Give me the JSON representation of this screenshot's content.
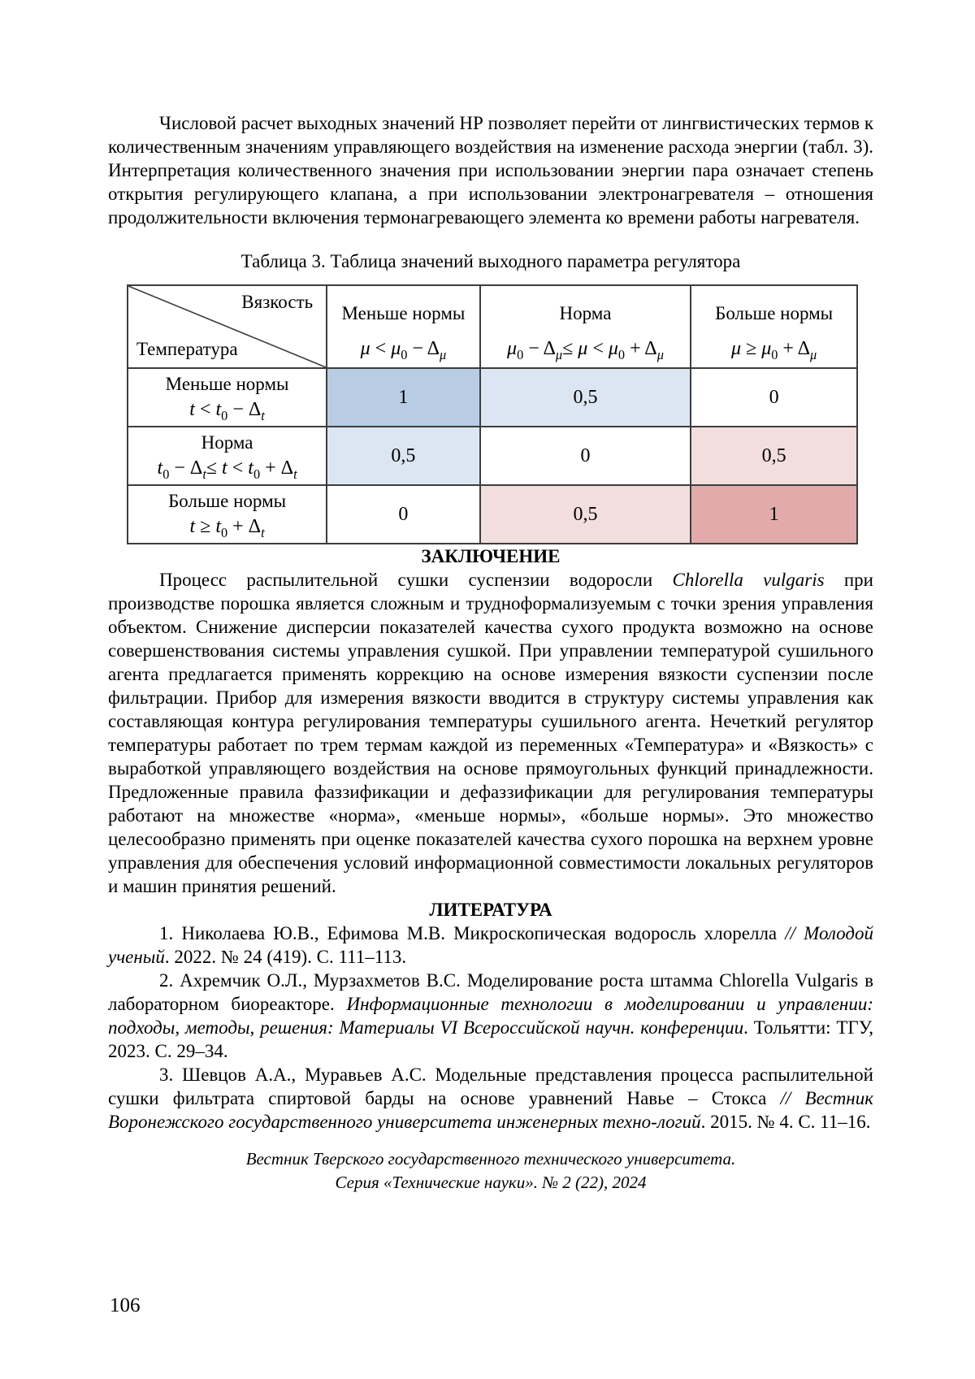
{
  "intro_paragraph": "Числовой расчет выходных значений НР позволяет перейти от лингвистических термов к количественным значениям управляющего воздействия на изменение расхода энергии (табл. 3). Интерпретация количественного значения при использовании энергии пара означает степень открытия регулирующего клапана, а при использовании электронагревателя – отношения продолжительности включения термонагревающего элемента ко времени работы нагревателя.",
  "table": {
    "caption": "Таблица 3. Таблица значений выходного параметра регулятора",
    "corner": {
      "top": "Вязкость",
      "bottom": "Температура"
    },
    "border_color": "#3d3d3d",
    "columns": [
      {
        "label": "Меньше нормы",
        "formula": [
          {
            "t": "μ",
            "i": true
          },
          {
            "t": " < "
          },
          {
            "t": "μ",
            "i": true
          },
          {
            "t": "0",
            "sub": true
          },
          {
            "t": " − Δ"
          },
          {
            "t": "μ",
            "sub": true,
            "i": true
          }
        ]
      },
      {
        "label": "Норма",
        "formula": [
          {
            "t": "μ",
            "i": true
          },
          {
            "t": "0",
            "sub": true
          },
          {
            "t": " − Δ"
          },
          {
            "t": "μ",
            "sub": true,
            "i": true
          },
          {
            "t": "≤ "
          },
          {
            "t": "μ",
            "i": true
          },
          {
            "t": " < "
          },
          {
            "t": "μ",
            "i": true
          },
          {
            "t": "0",
            "sub": true
          },
          {
            "t": " + Δ"
          },
          {
            "t": "μ",
            "sub": true,
            "i": true
          }
        ]
      },
      {
        "label": "Больше нормы",
        "formula": [
          {
            "t": "μ",
            "i": true
          },
          {
            "t": " ≥ "
          },
          {
            "t": "μ",
            "i": true
          },
          {
            "t": "0",
            "sub": true
          },
          {
            "t": " + Δ"
          },
          {
            "t": "μ",
            "sub": true,
            "i": true
          }
        ]
      }
    ],
    "rows": [
      {
        "label": "Меньше нормы",
        "formula": [
          {
            "t": "t",
            "i": true
          },
          {
            "t": " < "
          },
          {
            "t": "t",
            "i": true
          },
          {
            "t": "0",
            "sub": true
          },
          {
            "t": " − Δ"
          },
          {
            "t": "t",
            "sub": true,
            "i": true
          }
        ],
        "cells": [
          {
            "v": "1",
            "bg": "#b8cce4"
          },
          {
            "v": "0,5",
            "bg": "#dce6f2"
          },
          {
            "v": "0",
            "bg": "#ffffff"
          }
        ]
      },
      {
        "label": "Норма",
        "formula": [
          {
            "t": "t",
            "i": true
          },
          {
            "t": "0",
            "sub": true
          },
          {
            "t": " − Δ"
          },
          {
            "t": "t",
            "sub": true,
            "i": true
          },
          {
            "t": "≤ "
          },
          {
            "t": "t",
            "i": true
          },
          {
            "t": " < "
          },
          {
            "t": "t",
            "i": true
          },
          {
            "t": "0",
            "sub": true
          },
          {
            "t": " + Δ"
          },
          {
            "t": "t",
            "sub": true,
            "i": true
          }
        ],
        "cells": [
          {
            "v": "0,5",
            "bg": "#dce6f2"
          },
          {
            "v": "0",
            "bg": "#ffffff"
          },
          {
            "v": "0,5",
            "bg": "#f2dedd"
          }
        ]
      },
      {
        "label": "Больше нормы",
        "formula": [
          {
            "t": "t",
            "i": true
          },
          {
            "t": " ≥ "
          },
          {
            "t": "t",
            "i": true
          },
          {
            "t": "0",
            "sub": true
          },
          {
            "t": " + Δ"
          },
          {
            "t": "t",
            "sub": true,
            "i": true
          }
        ],
        "cells": [
          {
            "v": "0",
            "bg": "#ffffff"
          },
          {
            "v": "0,5",
            "bg": "#f2dedd"
          },
          {
            "v": "1",
            "bg": "#e0abaa"
          }
        ]
      }
    ],
    "cell_palette": {
      "blue_strong": "#b8cce4",
      "blue_light": "#dce6f2",
      "pink_light": "#f2dedd",
      "pink_strong": "#e0abaa"
    }
  },
  "conclusion": {
    "heading": "ЗАКЛЮЧЕНИЕ",
    "paragraph": [
      {
        "t": "Процесс распылительной сушки суспензии водоросли "
      },
      {
        "t": "Chlorella vulgaris",
        "i": true
      },
      {
        "t": " при производстве порошка является сложным и трудноформализуемым с точки зрения управления объектом. Снижение дисперсии показателей качества сухого продукта возможно на основе совершенствования системы управления сушкой. При управлении температурой сушильного агента предлагается применять коррекцию на основе измерения вязкости суспензии после фильтрации. Прибор для измерения вязкости вводится в структуру системы управления как составляющая контура регулирования температуры сушильного агента. Нечеткий регулятор температуры работает по трем термам каждой из переменных «Температура» и «Вязкость» с выработкой управляющего воздействия на основе прямоугольных функций принадлежности. Предложенные правила фаззификации и дефаззификации для регулирования температуры работают на множестве «норма», «меньше нормы», «больше нормы». Это множество целесообразно применять при оценке показателей качества сухого порошка на верхнем уровне управления для обеспечения условий информационной совместимости локальных регуляторов и машин принятия решений."
      }
    ]
  },
  "literature": {
    "heading": "ЛИТЕРАТУРА",
    "references": [
      [
        {
          "t": "1. Николаева Ю.В., Ефимова М.В. Микроскопическая водоросль хлорелла "
        },
        {
          "t": "// Молодой ученый",
          "i": true
        },
        {
          "t": ". 2022. № 24 (419). С. 111–113."
        }
      ],
      [
        {
          "t": "2. Ахремчик О.Л., Мурзахметов В.С. Моделирование роста штамма Chlorella Vulgaris в лабораторном биореакторе. "
        },
        {
          "t": "Информационные технологии в моделировании и управлении: подходы, методы, решения: Материалы VI Всероссийской научн. конференции",
          "i": true
        },
        {
          "t": ". Тольятти: ТГУ, 2023. С. 29–34."
        }
      ],
      [
        {
          "t": "3. Шевцов А.А., Муравьев А.С. Модельные представления процесса распылительной сушки фильтрата спиртовой барды на основе уравнений Навье – Стокса "
        },
        {
          "t": "// Вестник Воронежского государственного университета инженерных техно-логий",
          "i": true
        },
        {
          "t": ". 2015. № 4. С. 11–16."
        }
      ]
    ]
  },
  "footer": {
    "line1": "Вестник Тверского государственного технического университета.",
    "line2": "Серия «Технические науки». № 2 (22), 2024"
  },
  "page_number": "106"
}
